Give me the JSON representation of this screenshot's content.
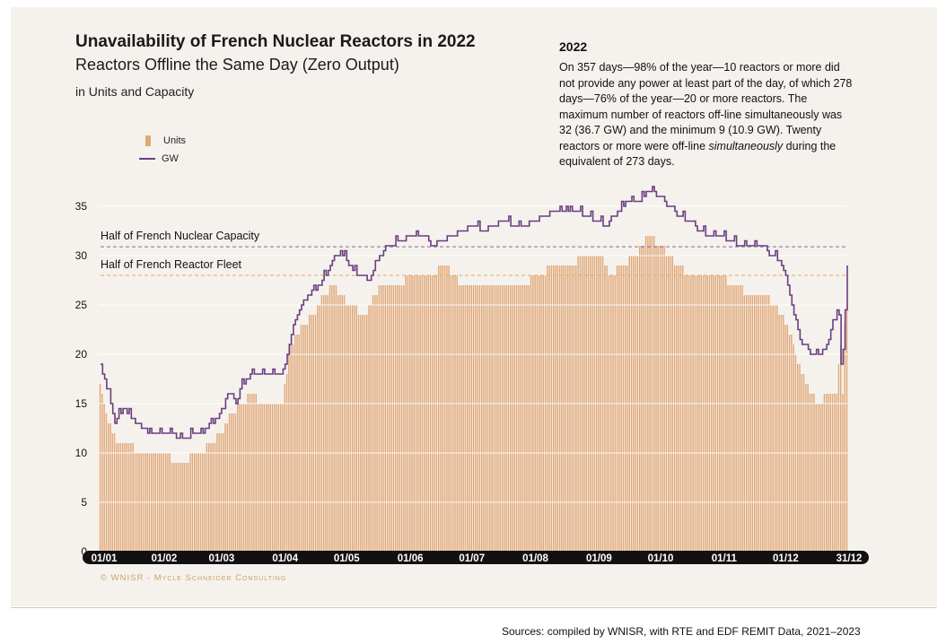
{
  "header": {
    "title": "Unavailability of French Nuclear Reactors in 2022",
    "subtitle": "Reactors Offline the Same Day (Zero Output)",
    "unit_line": "in Units and Capacity"
  },
  "note": {
    "title": "2022",
    "text_before_em": "On 357 days—98% of the year—10 reactors or more did not provide any power at least part of the day, of which 278 days—76% of the year—20 or more reactors. The maximum number of reactors off-line simultaneously was 32 (36.7 GW) and the minimum 9 (10.9 GW). Twenty reactors or more were off-line ",
    "em_text": "simultaneously",
    "text_after_em": " during the equivalent of 273 days."
  },
  "copyright": "© WNISR - Mycle Schneider Consulting",
  "sources": "Sources: compiled by WNISR, with RTE and EDF REMIT Data, 2021–2023",
  "colors": {
    "bar": "#e0a878",
    "line": "#6a3d80",
    "ref_capacity": "#8a6a9c",
    "ref_fleet": "#e8a860",
    "axis_label_bg": "#111111",
    "panel_bg": "#f5f2ed"
  },
  "chart_data": {
    "type": "bar",
    "series": [
      {
        "name": "Units",
        "kind": "bar",
        "keypoints": [
          [
            1,
            17
          ],
          [
            5,
            13
          ],
          [
            10,
            11
          ],
          [
            15,
            11
          ],
          [
            20,
            10
          ],
          [
            30,
            10
          ],
          [
            40,
            9
          ],
          [
            50,
            10
          ],
          [
            60,
            12
          ],
          [
            65,
            14
          ],
          [
            70,
            15
          ],
          [
            75,
            16
          ],
          [
            80,
            15
          ],
          [
            85,
            15
          ],
          [
            90,
            15
          ],
          [
            93,
            20
          ],
          [
            97,
            22
          ],
          [
            105,
            24
          ],
          [
            110,
            26
          ],
          [
            115,
            27
          ],
          [
            122,
            25
          ],
          [
            130,
            24
          ],
          [
            138,
            27
          ],
          [
            145,
            27
          ],
          [
            155,
            28
          ],
          [
            162,
            28
          ],
          [
            170,
            29
          ],
          [
            177,
            27
          ],
          [
            185,
            27
          ],
          [
            192,
            27
          ],
          [
            200,
            27
          ],
          [
            207,
            27
          ],
          [
            215,
            28
          ],
          [
            222,
            29
          ],
          [
            230,
            29
          ],
          [
            237,
            30
          ],
          [
            245,
            30
          ],
          [
            250,
            28
          ],
          [
            256,
            29
          ],
          [
            262,
            30
          ],
          [
            268,
            32
          ],
          [
            275,
            31
          ],
          [
            282,
            29
          ],
          [
            288,
            28
          ],
          [
            295,
            28
          ],
          [
            302,
            28
          ],
          [
            310,
            27
          ],
          [
            318,
            26
          ],
          [
            325,
            26
          ],
          [
            330,
            25
          ],
          [
            336,
            23
          ],
          [
            340,
            20
          ],
          [
            343,
            18
          ],
          [
            347,
            16
          ],
          [
            351,
            15
          ],
          [
            356,
            16
          ],
          [
            360,
            16
          ],
          [
            362,
            21
          ],
          [
            363,
            16
          ],
          [
            364,
            23
          ],
          [
            365,
            25
          ]
        ]
      },
      {
        "name": "GW",
        "kind": "line",
        "keypoints": [
          [
            1,
            18.8
          ],
          [
            5,
            16
          ],
          [
            8,
            13
          ],
          [
            12,
            14.5
          ],
          [
            18,
            13
          ],
          [
            25,
            12
          ],
          [
            35,
            12
          ],
          [
            40,
            11.5
          ],
          [
            50,
            12
          ],
          [
            55,
            13
          ],
          [
            60,
            14
          ],
          [
            63,
            16
          ],
          [
            67,
            15
          ],
          [
            70,
            17
          ],
          [
            75,
            18
          ],
          [
            80,
            18
          ],
          [
            85,
            17.8
          ],
          [
            90,
            18
          ],
          [
            93,
            21
          ],
          [
            97,
            24
          ],
          [
            102,
            26
          ],
          [
            108,
            27
          ],
          [
            113,
            29
          ],
          [
            118,
            30.5
          ],
          [
            122,
            29
          ],
          [
            127,
            28
          ],
          [
            132,
            27.5
          ],
          [
            137,
            30
          ],
          [
            142,
            31
          ],
          [
            148,
            31.5
          ],
          [
            153,
            32
          ],
          [
            158,
            32
          ],
          [
            163,
            31
          ],
          [
            168,
            31.5
          ],
          [
            173,
            32
          ],
          [
            178,
            32.5
          ],
          [
            183,
            33
          ],
          [
            188,
            32.5
          ],
          [
            193,
            33
          ],
          [
            198,
            33.5
          ],
          [
            203,
            33
          ],
          [
            208,
            33
          ],
          [
            213,
            33.5
          ],
          [
            218,
            34
          ],
          [
            223,
            34.5
          ],
          [
            228,
            34.8
          ],
          [
            233,
            34.5
          ],
          [
            238,
            34
          ],
          [
            243,
            33.5
          ],
          [
            248,
            33
          ],
          [
            253,
            34.5
          ],
          [
            258,
            35.5
          ],
          [
            263,
            35.5
          ],
          [
            268,
            36.7
          ],
          [
            273,
            36
          ],
          [
            278,
            35
          ],
          [
            283,
            34
          ],
          [
            288,
            33.5
          ],
          [
            293,
            32.5
          ],
          [
            298,
            32
          ],
          [
            303,
            32
          ],
          [
            308,
            31.5
          ],
          [
            313,
            31
          ],
          [
            318,
            31
          ],
          [
            323,
            31
          ],
          [
            328,
            30
          ],
          [
            332,
            29.5
          ],
          [
            336,
            27
          ],
          [
            340,
            23
          ],
          [
            343,
            21
          ],
          [
            347,
            20
          ],
          [
            351,
            20
          ],
          [
            355,
            20.5
          ],
          [
            358,
            23.5
          ],
          [
            361,
            24
          ],
          [
            362,
            19
          ],
          [
            363,
            20.5
          ],
          [
            365,
            28.5
          ]
        ]
      }
    ],
    "y_ticks": [
      "35",
      "30",
      "25",
      "20",
      "15",
      "10",
      "5",
      "0"
    ],
    "ylim": [
      0,
      37
    ],
    "x_ticks": [
      "01/01",
      "01/02",
      "01/03",
      "01/04",
      "01/05",
      "01/06",
      "01/07",
      "01/08",
      "01/09",
      "01/10",
      "01/11",
      "01/12",
      "31/12"
    ],
    "x_tick_days": [
      1,
      32,
      60,
      91,
      121,
      152,
      182,
      213,
      244,
      274,
      305,
      335,
      365
    ],
    "reference_lines": [
      {
        "label": "Half of French Nuclear Capacity",
        "value": 30.9
      },
      {
        "label": "Half of French Reactor Fleet",
        "value": 28
      }
    ],
    "legend": [
      "Units",
      "GW"
    ]
  }
}
